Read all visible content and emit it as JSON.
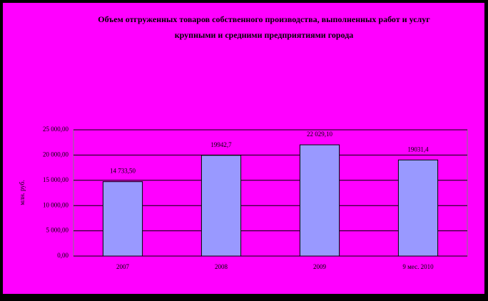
{
  "chart_data": {
    "type": "bar",
    "title_lines": [
      "Объем отгруженных товаров собственного производства, выполненных работ и услуг",
      "крупными и средними предприятиями города"
    ],
    "y_label": "млн. руб.",
    "categories": [
      "2007",
      "2008",
      "2009",
      "9 мес. 2010"
    ],
    "values": [
      14733.5,
      19942.7,
      22029.1,
      19031.4
    ],
    "value_labels": [
      "14 733,50",
      "19942,7",
      "22 029,10",
      "19031,4"
    ],
    "color": "#9999ff",
    "ylim": [
      0,
      25000
    ],
    "yticks": [
      {
        "value": 0,
        "label": "0,00"
      },
      {
        "value": 5000,
        "label": "5 000,00"
      },
      {
        "value": 10000,
        "label": "10 000,00"
      },
      {
        "value": 15000,
        "label": "15 000,00"
      },
      {
        "value": 20000,
        "label": "20 000,00"
      },
      {
        "value": 25000,
        "label": "25 000,00"
      }
    ],
    "grid": true
  }
}
